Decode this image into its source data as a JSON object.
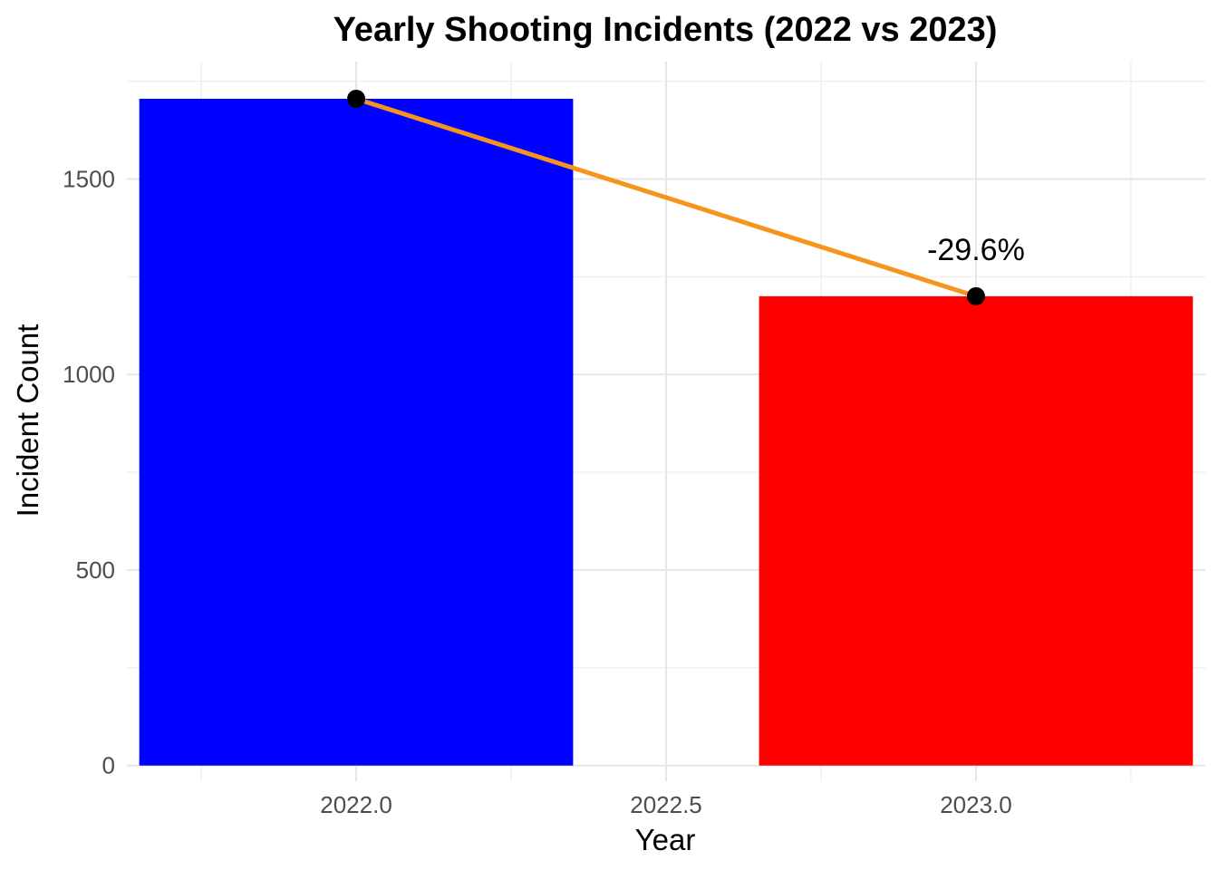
{
  "chart_data": {
    "type": "bar",
    "title": "Yearly Shooting Incidents (2022 vs 2023)",
    "xlabel": "Year",
    "ylabel": "Incident Count",
    "xlim": [
      2021.63,
      2023.37
    ],
    "ylim": [
      -40,
      1800
    ],
    "x_ticks": [
      2022.0,
      2022.5,
      2023.0
    ],
    "x_tick_labels": [
      "2022.0",
      "2022.5",
      "2023.0"
    ],
    "y_ticks": [
      0,
      500,
      1000,
      1500
    ],
    "y_tick_labels": [
      "0",
      "500",
      "1000",
      "1500"
    ],
    "grid": true,
    "legend": "none",
    "bar_width": 0.7,
    "bars": [
      {
        "x": 2022,
        "value": 1705,
        "color": "#0000ff"
      },
      {
        "x": 2023,
        "value": 1200,
        "color": "#ff0000"
      }
    ],
    "trend_line": {
      "color": "#f7941d",
      "points": [
        {
          "x": 2022,
          "y": 1705
        },
        {
          "x": 2023,
          "y": 1200
        }
      ],
      "marker_color": "#000000"
    },
    "annotations": [
      {
        "text": "-29.6%",
        "x": 2023,
        "y": 1200
      }
    ]
  }
}
